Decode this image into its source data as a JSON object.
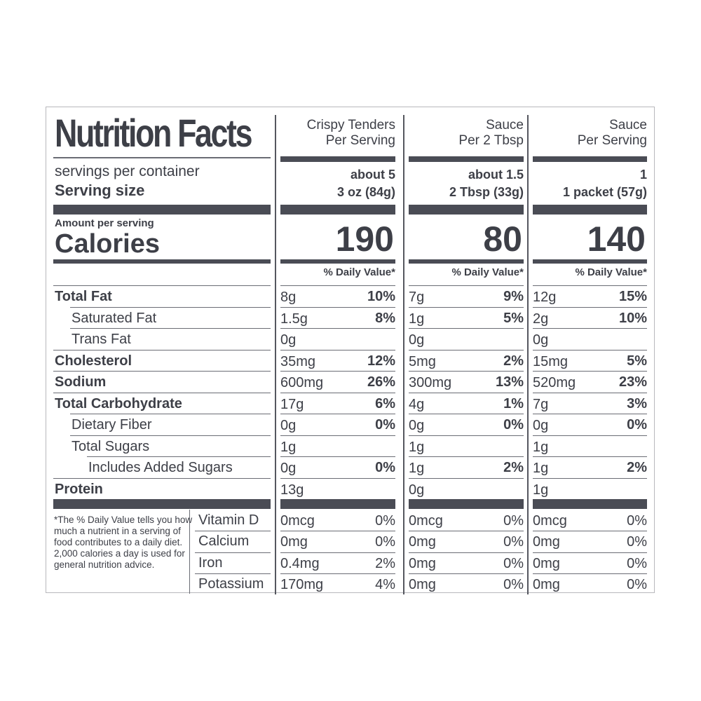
{
  "title": "Nutrition Facts",
  "servings_label": "servings per container",
  "serving_size_label": "Serving size",
  "amount_per_serving": "Amount per serving",
  "calories_label": "Calories",
  "dv_label": "% Daily Value*",
  "columns": [
    {
      "header1": "Crispy Tenders",
      "header2": "Per Serving",
      "servings": "about 5",
      "serving_size": "3 oz (84g)",
      "calories": "190"
    },
    {
      "header1": "Sauce",
      "header2": "Per 2 Tbsp",
      "servings": "about 1.5",
      "serving_size": "2 Tbsp (33g)",
      "calories": "80"
    },
    {
      "header1": "Sauce",
      "header2": "Per Serving",
      "servings": "1",
      "serving_size": "1 packet (57g)",
      "calories": "140"
    }
  ],
  "nutrients": [
    {
      "name": "Total Fat",
      "bold": true,
      "indent": 0,
      "values": [
        [
          "8g",
          "10%"
        ],
        [
          "7g",
          "9%"
        ],
        [
          "12g",
          "15%"
        ]
      ]
    },
    {
      "name": "Saturated Fat",
      "bold": false,
      "indent": 1,
      "values": [
        [
          "1.5g",
          "8%"
        ],
        [
          "1g",
          "5%"
        ],
        [
          "2g",
          "10%"
        ]
      ]
    },
    {
      "name": "Trans Fat",
      "bold": false,
      "indent": 1,
      "values": [
        [
          "0g",
          ""
        ],
        [
          "0g",
          ""
        ],
        [
          "0g",
          ""
        ]
      ]
    },
    {
      "name": "Cholesterol",
      "bold": true,
      "indent": 0,
      "values": [
        [
          "35mg",
          "12%"
        ],
        [
          "5mg",
          "2%"
        ],
        [
          "15mg",
          "5%"
        ]
      ]
    },
    {
      "name": "Sodium",
      "bold": true,
      "indent": 0,
      "values": [
        [
          "600mg",
          "26%"
        ],
        [
          "300mg",
          "13%"
        ],
        [
          "520mg",
          "23%"
        ]
      ]
    },
    {
      "name": "Total Carbohydrate",
      "bold": true,
      "indent": 0,
      "values": [
        [
          "17g",
          "6%"
        ],
        [
          "4g",
          "1%"
        ],
        [
          "7g",
          "3%"
        ]
      ]
    },
    {
      "name": "Dietary Fiber",
      "bold": false,
      "indent": 1,
      "values": [
        [
          "0g",
          "0%"
        ],
        [
          "0g",
          "0%"
        ],
        [
          "0g",
          "0%"
        ]
      ]
    },
    {
      "name": "Total Sugars",
      "bold": false,
      "indent": 1,
      "values": [
        [
          "1g",
          ""
        ],
        [
          "1g",
          ""
        ],
        [
          "1g",
          ""
        ]
      ]
    },
    {
      "name": "Includes Added Sugars",
      "bold": false,
      "indent": 2,
      "values": [
        [
          "0g",
          "0%"
        ],
        [
          "1g",
          "2%"
        ],
        [
          "1g",
          "2%"
        ]
      ]
    },
    {
      "name": "Protein",
      "bold": true,
      "indent": 0,
      "values": [
        [
          "13g",
          ""
        ],
        [
          "0g",
          ""
        ],
        [
          "1g",
          ""
        ]
      ]
    }
  ],
  "vitamins": [
    {
      "name": "Vitamin D",
      "values": [
        [
          "0mcg",
          "0%"
        ],
        [
          "0mcg",
          "0%"
        ],
        [
          "0mcg",
          "0%"
        ]
      ]
    },
    {
      "name": "Calcium",
      "values": [
        [
          "0mg",
          "0%"
        ],
        [
          "0mg",
          "0%"
        ],
        [
          "0mg",
          "0%"
        ]
      ]
    },
    {
      "name": "Iron",
      "values": [
        [
          "0.4mg",
          "2%"
        ],
        [
          "0mg",
          "0%"
        ],
        [
          "0mg",
          "0%"
        ]
      ]
    },
    {
      "name": "Potassium",
      "values": [
        [
          "170mg",
          "4%"
        ],
        [
          "0mg",
          "0%"
        ],
        [
          "0mg",
          "0%"
        ]
      ]
    }
  ],
  "footnote": "*The % Daily Value tells you how much a nutrient in a serving of food contributes to a daily diet. 2,000 calories a day is used for general nutrition advice."
}
